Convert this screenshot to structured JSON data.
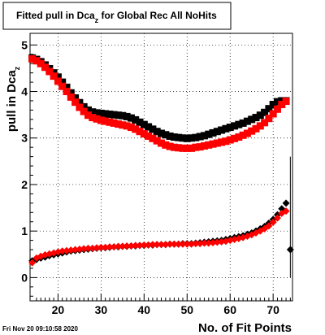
{
  "chart_data": {
    "type": "scatter",
    "title": "Fitted pull in Dca",
    "title_subscript": "z",
    "title_suffix": " for Global Rec All NoHits",
    "ylabel": "pull in Dca",
    "ylabel_subscript": "z",
    "xlabel": "No. of Fit Points",
    "xlim": [
      13.5,
      74.5
    ],
    "ylim": [
      -0.5,
      5.25
    ],
    "x_ticks": [
      20,
      30,
      40,
      50,
      60,
      70
    ],
    "y_ticks": [
      0,
      1,
      2,
      3,
      4,
      5
    ],
    "grid": true,
    "stamp": "Fri Nov 20 09:10:58 2020",
    "series": [
      {
        "marker": "square",
        "color": "#000000",
        "x": [
          14,
          15,
          16,
          17,
          18,
          19,
          20,
          21,
          22,
          23,
          24,
          25,
          26,
          27,
          28,
          29,
          30,
          31,
          32,
          33,
          34,
          35,
          36,
          37,
          38,
          39,
          40,
          41,
          42,
          43,
          44,
          45,
          46,
          47,
          48,
          49,
          50,
          51,
          52,
          53,
          54,
          55,
          56,
          57,
          58,
          59,
          60,
          61,
          62,
          63,
          64,
          65,
          66,
          67,
          68,
          69,
          70,
          71,
          72,
          73
        ],
        "y": [
          4.72,
          4.69,
          4.64,
          4.57,
          4.49,
          4.4,
          4.31,
          4.2,
          4.09,
          3.97,
          3.86,
          3.76,
          3.67,
          3.6,
          3.56,
          3.54,
          3.53,
          3.52,
          3.51,
          3.5,
          3.49,
          3.48,
          3.46,
          3.43,
          3.39,
          3.34,
          3.29,
          3.24,
          3.19,
          3.14,
          3.1,
          3.07,
          3.04,
          3.02,
          3.01,
          3.0,
          2.99,
          3.0,
          3.01,
          3.03,
          3.05,
          3.08,
          3.11,
          3.14,
          3.17,
          3.2,
          3.23,
          3.26,
          3.29,
          3.32,
          3.36,
          3.4,
          3.44,
          3.49,
          3.55,
          3.63,
          3.72,
          3.78,
          3.8,
          3.8
        ]
      },
      {
        "marker": "square",
        "color": "#ff0000",
        "x": [
          14,
          15,
          16,
          17,
          18,
          19,
          20,
          21,
          22,
          23,
          24,
          25,
          26,
          27,
          28,
          29,
          30,
          31,
          32,
          33,
          34,
          35,
          36,
          37,
          38,
          39,
          40,
          41,
          42,
          43,
          44,
          45,
          46,
          47,
          48,
          49,
          50,
          51,
          52,
          53,
          54,
          55,
          56,
          57,
          58,
          59,
          60,
          61,
          62,
          63,
          64,
          65,
          66,
          67,
          68,
          69,
          70,
          71,
          72,
          73
        ],
        "y": [
          4.7,
          4.66,
          4.6,
          4.52,
          4.43,
          4.33,
          4.22,
          4.11,
          4.0,
          3.88,
          3.77,
          3.66,
          3.57,
          3.49,
          3.44,
          3.41,
          3.38,
          3.36,
          3.34,
          3.32,
          3.3,
          3.28,
          3.26,
          3.23,
          3.19,
          3.14,
          3.09,
          3.04,
          2.99,
          2.94,
          2.89,
          2.85,
          2.82,
          2.8,
          2.79,
          2.78,
          2.78,
          2.78,
          2.8,
          2.81,
          2.83,
          2.85,
          2.87,
          2.89,
          2.91,
          2.93,
          2.96,
          2.99,
          3.02,
          3.06,
          3.1,
          3.15,
          3.2,
          3.26,
          3.33,
          3.42,
          3.52,
          3.62,
          3.72,
          3.79
        ]
      },
      {
        "marker": "diamond",
        "color": "#000000",
        "x": [
          14,
          15,
          16,
          17,
          18,
          19,
          20,
          21,
          22,
          23,
          24,
          25,
          26,
          27,
          28,
          29,
          30,
          31,
          32,
          33,
          34,
          35,
          36,
          37,
          38,
          39,
          40,
          41,
          42,
          43,
          44,
          45,
          46,
          47,
          48,
          49,
          50,
          51,
          52,
          53,
          54,
          55,
          56,
          57,
          58,
          59,
          60,
          61,
          62,
          63,
          64,
          65,
          66,
          67,
          68,
          69,
          70,
          71,
          72,
          73,
          74
        ],
        "y": [
          0.36,
          0.39,
          0.42,
          0.44,
          0.47,
          0.49,
          0.51,
          0.53,
          0.55,
          0.57,
          0.58,
          0.59,
          0.6,
          0.61,
          0.62,
          0.63,
          0.64,
          0.64,
          0.65,
          0.66,
          0.66,
          0.67,
          0.67,
          0.68,
          0.68,
          0.69,
          0.69,
          0.7,
          0.7,
          0.71,
          0.71,
          0.71,
          0.72,
          0.72,
          0.72,
          0.73,
          0.73,
          0.73,
          0.74,
          0.75,
          0.76,
          0.77,
          0.78,
          0.79,
          0.8,
          0.82,
          0.84,
          0.86,
          0.88,
          0.9,
          0.93,
          0.96,
          1.0,
          1.05,
          1.1,
          1.17,
          1.25,
          1.35,
          1.48,
          1.6,
          0.6
        ]
      },
      {
        "marker": "diamond",
        "color": "#ff0000",
        "x": [
          14,
          15,
          16,
          17,
          18,
          19,
          20,
          21,
          22,
          23,
          24,
          25,
          26,
          27,
          28,
          29,
          30,
          31,
          32,
          33,
          34,
          35,
          36,
          37,
          38,
          39,
          40,
          41,
          42,
          43,
          44,
          45,
          46,
          47,
          48,
          49,
          50,
          51,
          52,
          53,
          54,
          55,
          56,
          57,
          58,
          59,
          60,
          61,
          62,
          63,
          64,
          65,
          66,
          67,
          68,
          69,
          70,
          71,
          72,
          73
        ],
        "y": [
          0.32,
          0.42,
          0.46,
          0.49,
          0.51,
          0.53,
          0.55,
          0.57,
          0.58,
          0.59,
          0.6,
          0.61,
          0.62,
          0.63,
          0.63,
          0.64,
          0.65,
          0.65,
          0.66,
          0.66,
          0.67,
          0.67,
          0.68,
          0.68,
          0.69,
          0.69,
          0.7,
          0.7,
          0.71,
          0.71,
          0.71,
          0.71,
          0.72,
          0.72,
          0.72,
          0.72,
          0.72,
          0.72,
          0.73,
          0.73,
          0.74,
          0.74,
          0.75,
          0.76,
          0.77,
          0.78,
          0.8,
          0.82,
          0.84,
          0.86,
          0.89,
          0.92,
          0.96,
          1.0,
          1.05,
          1.11,
          1.19,
          1.28,
          1.38,
          1.43
        ]
      }
    ],
    "error_bar": {
      "x": 74,
      "ylow": 0.0,
      "yhigh": 2.6,
      "color": "#000000"
    }
  }
}
